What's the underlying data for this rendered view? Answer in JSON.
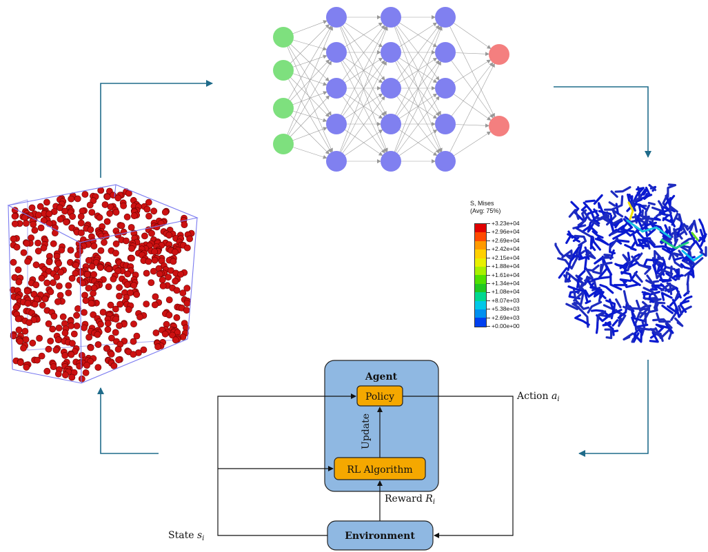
{
  "colors": {
    "arrow": "#1f6b8a",
    "input_node": "#7ee07e",
    "hidden_node": "#8080f0",
    "output_node": "#f47f7f",
    "sphere": "#cc1111",
    "agent_box": "#8fb8e2",
    "component_box": "#f5a800",
    "wire": "#2330c8"
  },
  "neural_network": {
    "layers": [
      4,
      5,
      5,
      5,
      2
    ]
  },
  "stress_legend": {
    "title_line1": "S, Mises",
    "title_line2": "(Avg: 75%)",
    "ticks": [
      "+3.23e+04",
      "+2.96e+04",
      "+2.69e+04",
      "+2.42e+04",
      "+2.15e+04",
      "+1.88e+04",
      "+1.61e+04",
      "+1.34e+04",
      "+1.08e+04",
      "+8.07e+03",
      "+5.38e+03",
      "+2.69e+03",
      "+0.00e+00"
    ],
    "band_colors": [
      "#e00000",
      "#ff4a00",
      "#ff9a00",
      "#ffd000",
      "#e8f000",
      "#a8f000",
      "#50e000",
      "#20c820",
      "#00d890",
      "#00c8e8",
      "#0090f0",
      "#0040f0"
    ]
  },
  "rl_diagram": {
    "agent_label": "Agent",
    "policy_label": "Policy",
    "update_label": "Update",
    "rl_algorithm_label": "RL Algorithm",
    "environment_label": "Environment",
    "reward_label": "Reward",
    "reward_symbol": "R",
    "reward_sub": "i",
    "action_label": "Action",
    "action_symbol": "a",
    "action_sub": "i",
    "state_label": "State",
    "state_symbol": "s",
    "state_sub": "i"
  }
}
